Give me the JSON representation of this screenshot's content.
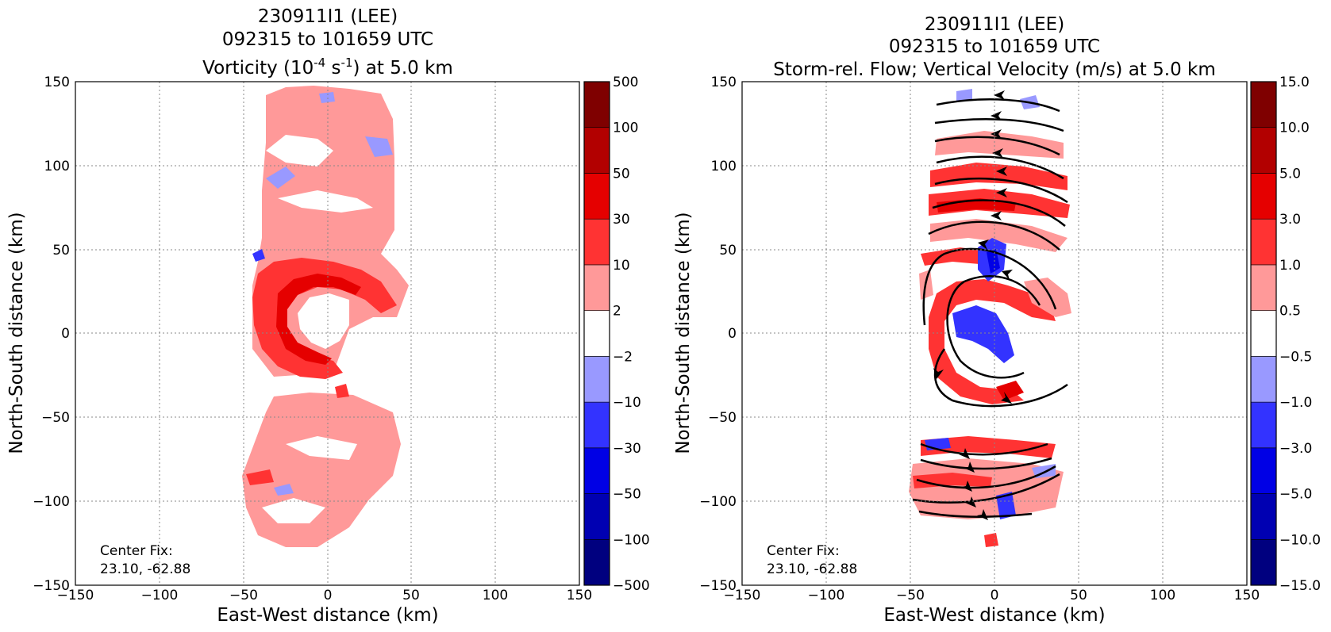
{
  "chart_data": [
    {
      "type": "heatmap",
      "title_lines": [
        "230911I1 (LEE)",
        "092315 to 101659 UTC"
      ],
      "title_line3": {
        "pre": "Vorticity (10",
        "sup1": "-4",
        "mid": " s",
        "sup2": "-1",
        "post": ") at 5.0 km"
      },
      "xlabel": "East-West distance (km)",
      "ylabel": "North-South distance (km)",
      "xlim": [
        -150,
        150
      ],
      "ylim": [
        -150,
        150
      ],
      "xticks": [
        "−150",
        "−100",
        "−50",
        "0",
        "50",
        "100",
        "150"
      ],
      "yticks": [
        "−150",
        "−100",
        "−50",
        "0",
        "50",
        "100",
        "150"
      ],
      "grid": true,
      "annotation": [
        "Center Fix:",
        "23.10, -62.88"
      ],
      "colorbar": {
        "levels": [
          "−500",
          "−100",
          "−50",
          "−30",
          "−10",
          "−2",
          "2",
          "10",
          "30",
          "50",
          "100",
          "500"
        ],
        "colors": [
          "#00007f",
          "#0000b2",
          "#0000e5",
          "#3333ff",
          "#9999ff",
          "#ffffff",
          "#ff9999",
          "#ff3333",
          "#e50000",
          "#b20000",
          "#7f0000"
        ]
      }
    },
    {
      "type": "heatmap",
      "title_lines": [
        "230911I1 (LEE)",
        "092315 to 101659 UTC",
        "Storm-rel. Flow; Vertical Velocity (m/s) at 5.0 km"
      ],
      "xlabel": "East-West distance (km)",
      "ylabel": "North-South distance (km)",
      "xlim": [
        -150,
        150
      ],
      "ylim": [
        -150,
        150
      ],
      "xticks": [
        "−150",
        "−100",
        "−50",
        "0",
        "50",
        "100",
        "150"
      ],
      "yticks": [
        "−150",
        "−100",
        "−50",
        "0",
        "50",
        "100",
        "150"
      ],
      "grid": true,
      "annotation": [
        "Center Fix:",
        "23.10, -62.88"
      ],
      "colorbar": {
        "levels": [
          "−15.0",
          "−10.0",
          "−5.0",
          "−3.0",
          "−1.0",
          "−0.5",
          "0.5",
          "1.0",
          "3.0",
          "5.0",
          "10.0",
          "15.0"
        ],
        "colors": [
          "#00007f",
          "#0000b2",
          "#0000e5",
          "#3333ff",
          "#9999ff",
          "#ffffff",
          "#ff9999",
          "#ff3333",
          "#e50000",
          "#b20000",
          "#7f0000"
        ]
      }
    }
  ]
}
